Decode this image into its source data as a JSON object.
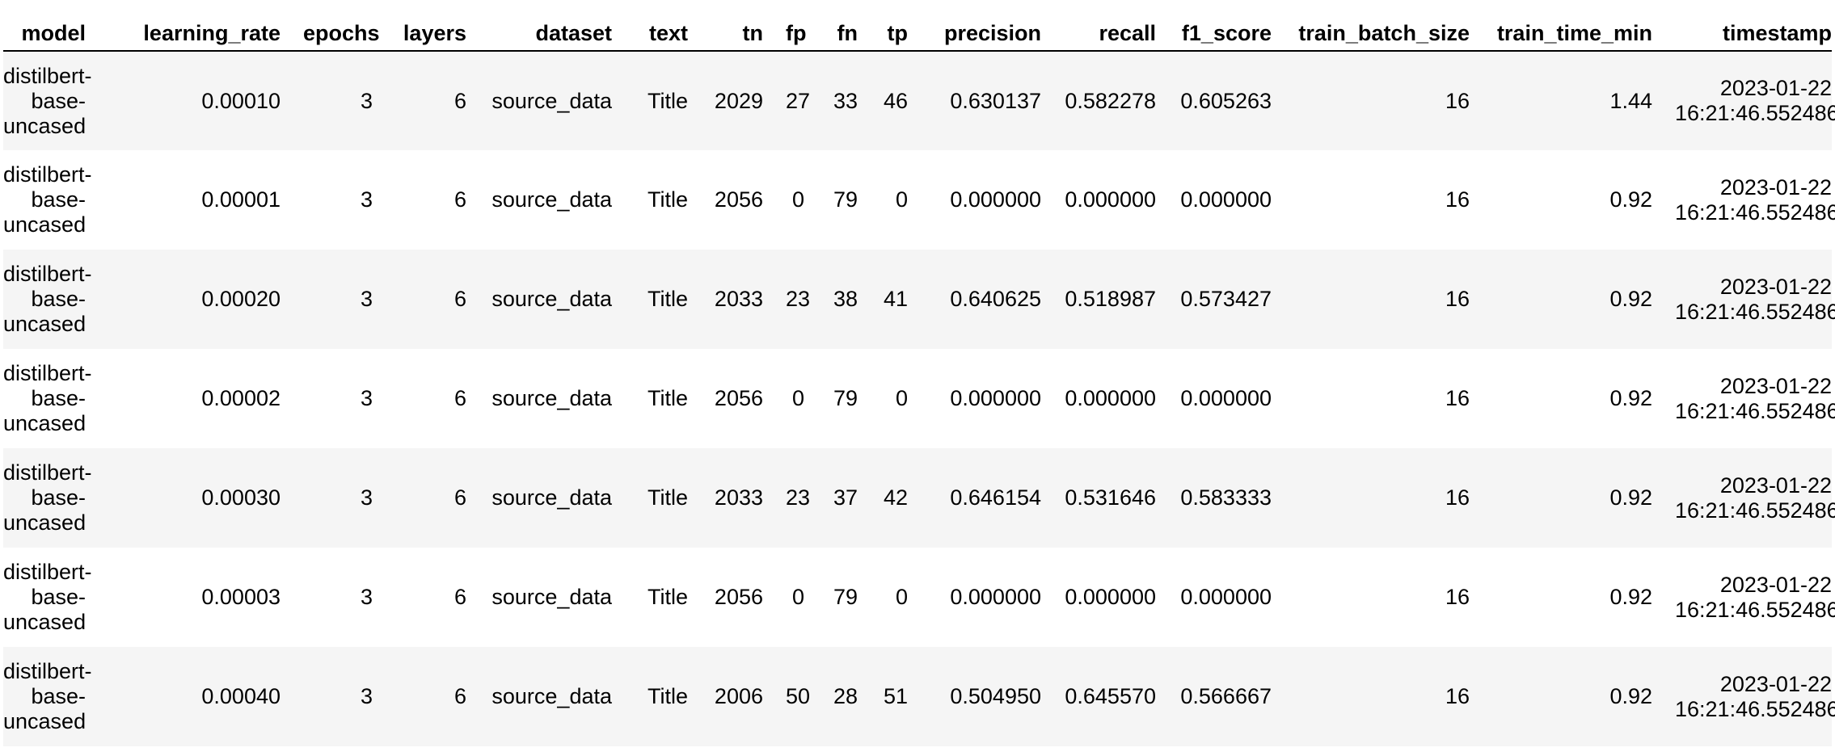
{
  "table": {
    "columns": [
      "model",
      "learning_rate",
      "epochs",
      "layers",
      "dataset",
      "text",
      "tn",
      "fp",
      "fn",
      "tp",
      "precision",
      "recall",
      "f1_score",
      "train_batch_size",
      "train_time_min",
      "timestamp"
    ],
    "rows": [
      {
        "model": "distilbert-\nbase-\nuncased",
        "learning_rate": "0.00010",
        "epochs": "3",
        "layers": "6",
        "dataset": "source_data",
        "text": "Title",
        "tn": "2029",
        "fp": "27",
        "fn": "33",
        "tp": "46",
        "precision": "0.630137",
        "recall": "0.582278",
        "f1_score": "0.605263",
        "train_batch_size": "16",
        "train_time_min": "1.44",
        "timestamp": "2023-01-22\n16:21:46.552486"
      },
      {
        "model": "distilbert-\nbase-\nuncased",
        "learning_rate": "0.00001",
        "epochs": "3",
        "layers": "6",
        "dataset": "source_data",
        "text": "Title",
        "tn": "2056",
        "fp": "0",
        "fn": "79",
        "tp": "0",
        "precision": "0.000000",
        "recall": "0.000000",
        "f1_score": "0.000000",
        "train_batch_size": "16",
        "train_time_min": "0.92",
        "timestamp": "2023-01-22\n16:21:46.552486"
      },
      {
        "model": "distilbert-\nbase-\nuncased",
        "learning_rate": "0.00020",
        "epochs": "3",
        "layers": "6",
        "dataset": "source_data",
        "text": "Title",
        "tn": "2033",
        "fp": "23",
        "fn": "38",
        "tp": "41",
        "precision": "0.640625",
        "recall": "0.518987",
        "f1_score": "0.573427",
        "train_batch_size": "16",
        "train_time_min": "0.92",
        "timestamp": "2023-01-22\n16:21:46.552486"
      },
      {
        "model": "distilbert-\nbase-\nuncased",
        "learning_rate": "0.00002",
        "epochs": "3",
        "layers": "6",
        "dataset": "source_data",
        "text": "Title",
        "tn": "2056",
        "fp": "0",
        "fn": "79",
        "tp": "0",
        "precision": "0.000000",
        "recall": "0.000000",
        "f1_score": "0.000000",
        "train_batch_size": "16",
        "train_time_min": "0.92",
        "timestamp": "2023-01-22\n16:21:46.552486"
      },
      {
        "model": "distilbert-\nbase-\nuncased",
        "learning_rate": "0.00030",
        "epochs": "3",
        "layers": "6",
        "dataset": "source_data",
        "text": "Title",
        "tn": "2033",
        "fp": "23",
        "fn": "37",
        "tp": "42",
        "precision": "0.646154",
        "recall": "0.531646",
        "f1_score": "0.583333",
        "train_batch_size": "16",
        "train_time_min": "0.92",
        "timestamp": "2023-01-22\n16:21:46.552486"
      },
      {
        "model": "distilbert-\nbase-\nuncased",
        "learning_rate": "0.00003",
        "epochs": "3",
        "layers": "6",
        "dataset": "source_data",
        "text": "Title",
        "tn": "2056",
        "fp": "0",
        "fn": "79",
        "tp": "0",
        "precision": "0.000000",
        "recall": "0.000000",
        "f1_score": "0.000000",
        "train_batch_size": "16",
        "train_time_min": "0.92",
        "timestamp": "2023-01-22\n16:21:46.552486"
      },
      {
        "model": "distilbert-\nbase-\nuncased",
        "learning_rate": "0.00040",
        "epochs": "3",
        "layers": "6",
        "dataset": "source_data",
        "text": "Title",
        "tn": "2006",
        "fp": "50",
        "fn": "28",
        "tp": "51",
        "precision": "0.504950",
        "recall": "0.645570",
        "f1_score": "0.566667",
        "train_batch_size": "16",
        "train_time_min": "0.92",
        "timestamp": "2023-01-22\n16:21:46.552486"
      }
    ]
  }
}
